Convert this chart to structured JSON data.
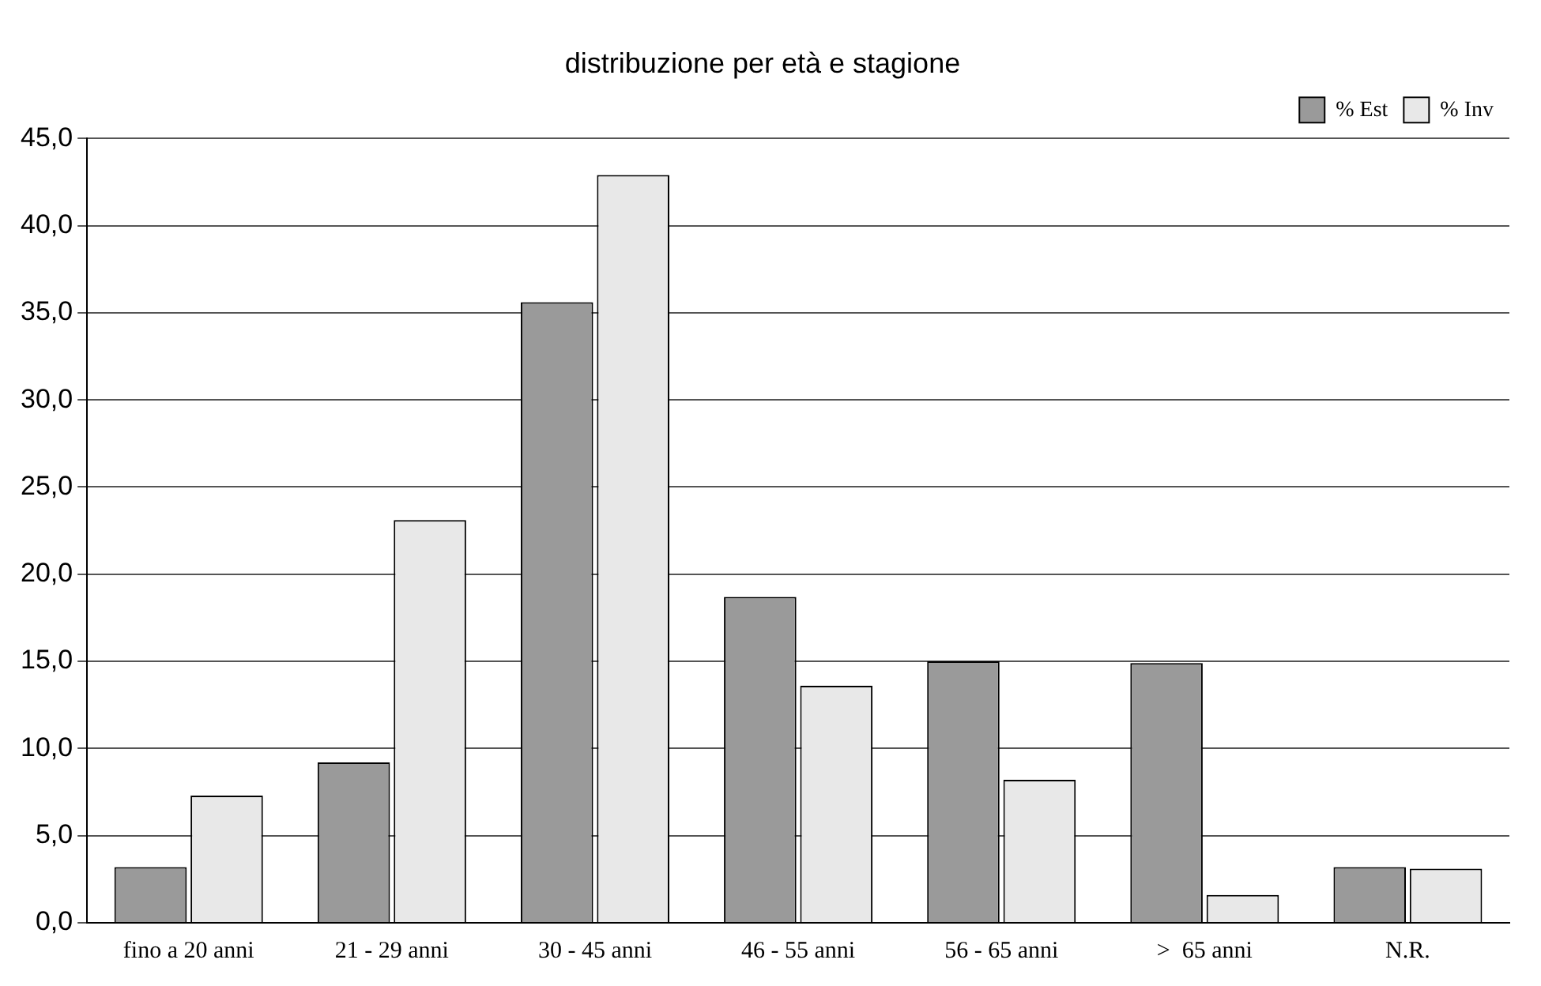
{
  "chart_data": {
    "type": "bar",
    "title": "distribuzione per età e stagione",
    "categories": [
      "fino a 20 anni",
      "21 - 29 anni",
      "30 - 45 anni",
      "46 - 55 anni",
      "56 - 65 anni",
      ">  65 anni",
      "N.R."
    ],
    "series": [
      {
        "name": "% Est",
        "color": "#9a9a9a",
        "values": [
          3.2,
          9.2,
          35.6,
          18.7,
          15.0,
          14.9,
          3.2
        ]
      },
      {
        "name": "% Inv",
        "color": "#e8e8e8",
        "values": [
          7.3,
          23.1,
          42.9,
          13.6,
          8.2,
          1.6,
          3.1
        ]
      }
    ],
    "ylim": [
      0,
      45
    ],
    "yticks": [
      {
        "value": 0,
        "label": "0,0"
      },
      {
        "value": 5,
        "label": "5,0"
      },
      {
        "value": 10,
        "label": "10,0"
      },
      {
        "value": 15,
        "label": "15,0"
      },
      {
        "value": 20,
        "label": "20,0"
      },
      {
        "value": 25,
        "label": "25,0"
      },
      {
        "value": 30,
        "label": "30,0"
      },
      {
        "value": 35,
        "label": "35,0"
      },
      {
        "value": 40,
        "label": "40,0"
      },
      {
        "value": 45,
        "label": "45,0"
      }
    ],
    "grid": "y",
    "legend": "top right"
  }
}
